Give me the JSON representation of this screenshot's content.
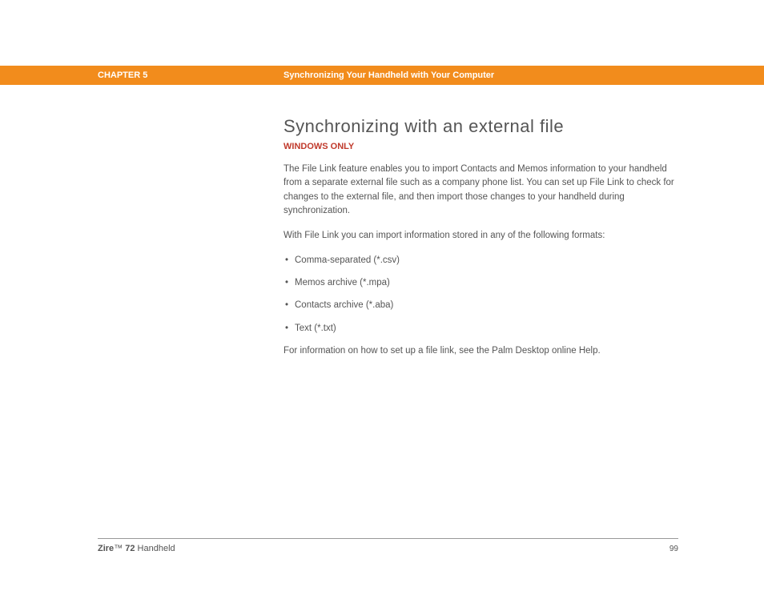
{
  "header": {
    "chapter_label": "CHAPTER 5",
    "chapter_title": "Synchronizing Your Handheld with Your Computer",
    "bg_color": "#f28c1c"
  },
  "content": {
    "heading": "Synchronizing with an external file",
    "subtitle": "WINDOWS ONLY",
    "subtitle_color": "#c0392b",
    "paragraph1": "The File Link feature enables you to import Contacts and Memos information to your handheld from a separate external file such as a company phone list. You can set up File Link to check for changes to the external file, and then import those changes to your handheld during synchronization.",
    "paragraph2": "With File Link you can import information stored in any of the following formats:",
    "formats": [
      "Comma-separated (*.csv)",
      "Memos archive (*.mpa)",
      "Contacts archive (*.aba)",
      "Text (*.txt)"
    ],
    "paragraph3": "For information on how to set up a file link, see the Palm Desktop online Help."
  },
  "footer": {
    "product_prefix": "Zire",
    "product_tm": "™",
    "product_model": " 72",
    "product_suffix": " Handheld",
    "page_number": "99"
  }
}
